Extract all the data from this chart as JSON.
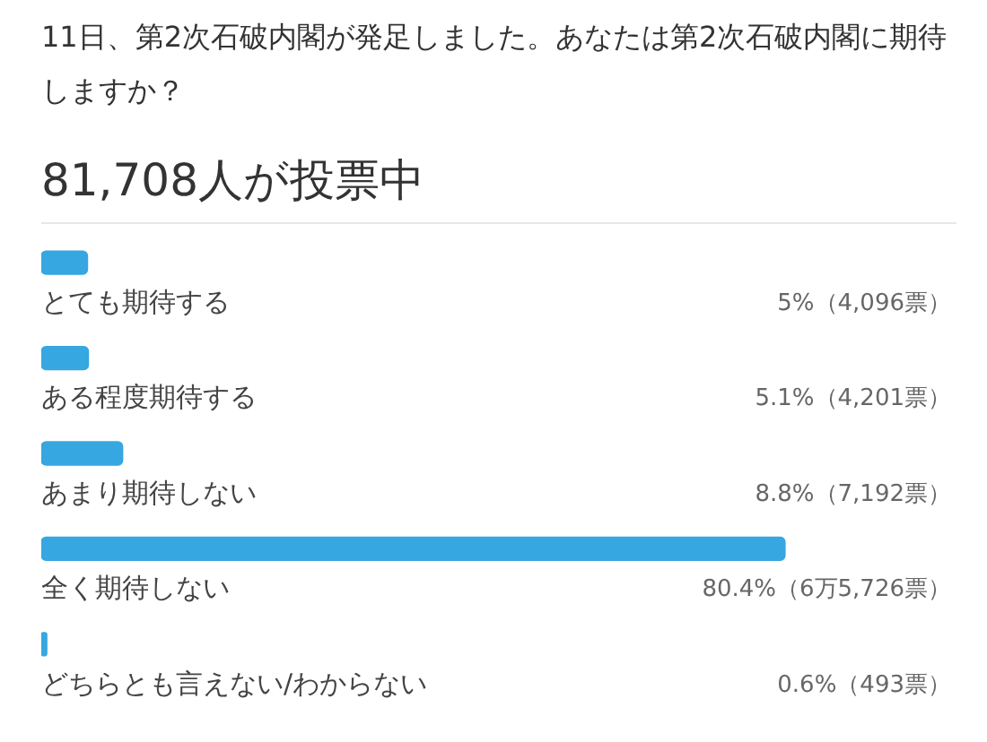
{
  "chart_data": {
    "type": "bar",
    "orientation": "horizontal",
    "title": "11日、第2次石破内閣が発足しました。あなたは第2次石破内閣に期待しますか？",
    "subtitle": "81,708人が投票中",
    "categories": [
      "とても期待する",
      "ある程度期待する",
      "あまり期待しない",
      "全く期待しない",
      "どちらとも言えない/わからない"
    ],
    "values": [
      5,
      5.1,
      8.8,
      80.4,
      0.6
    ],
    "value_labels": [
      "5%（4,096票）",
      "5.1%（4,201票）",
      "8.8%（7,192票）",
      "80.4%（6万5,726票）",
      "0.6%（493票）"
    ],
    "color": "#36a7e0",
    "tick_labels": false
  }
}
